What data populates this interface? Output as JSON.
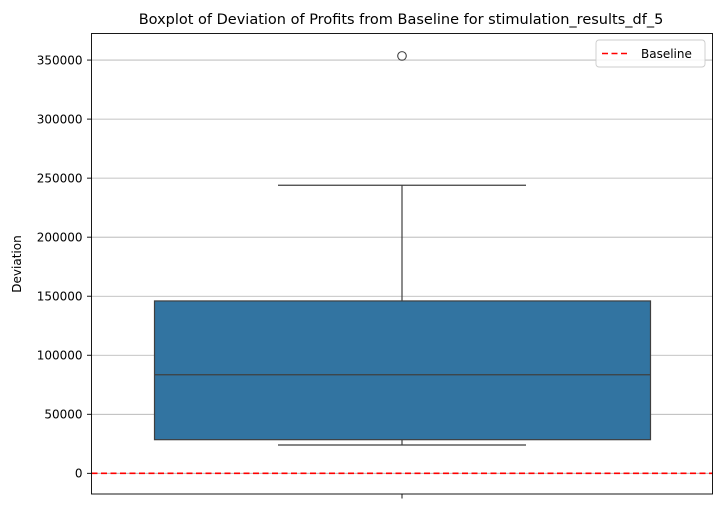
{
  "chart_data": {
    "type": "box",
    "title": "Boxplot of Deviation of Profits from Baseline for stimulation_results_df_5",
    "xlabel": "",
    "ylabel": "Deviation",
    "ylim": [
      -17500,
      372500
    ],
    "yticks": [
      0,
      50000,
      100000,
      150000,
      200000,
      250000,
      300000,
      350000
    ],
    "ytick_labels": [
      "0",
      "50000",
      "100000",
      "150000",
      "200000",
      "250000",
      "300000",
      "350000"
    ],
    "grid": "horizontal",
    "box": {
      "color": "#3274a1",
      "whisker_low": 24000,
      "q1": 28500,
      "median": 83500,
      "q3": 146000,
      "whisker_high": 244000,
      "outliers": [
        353500
      ]
    },
    "baseline": {
      "value": 0,
      "color": "#ff0000",
      "style": "dashed"
    },
    "legend": {
      "position": "top-right",
      "entries": [
        {
          "label": "Baseline",
          "color": "#ff0000",
          "style": "dashed"
        }
      ]
    }
  }
}
